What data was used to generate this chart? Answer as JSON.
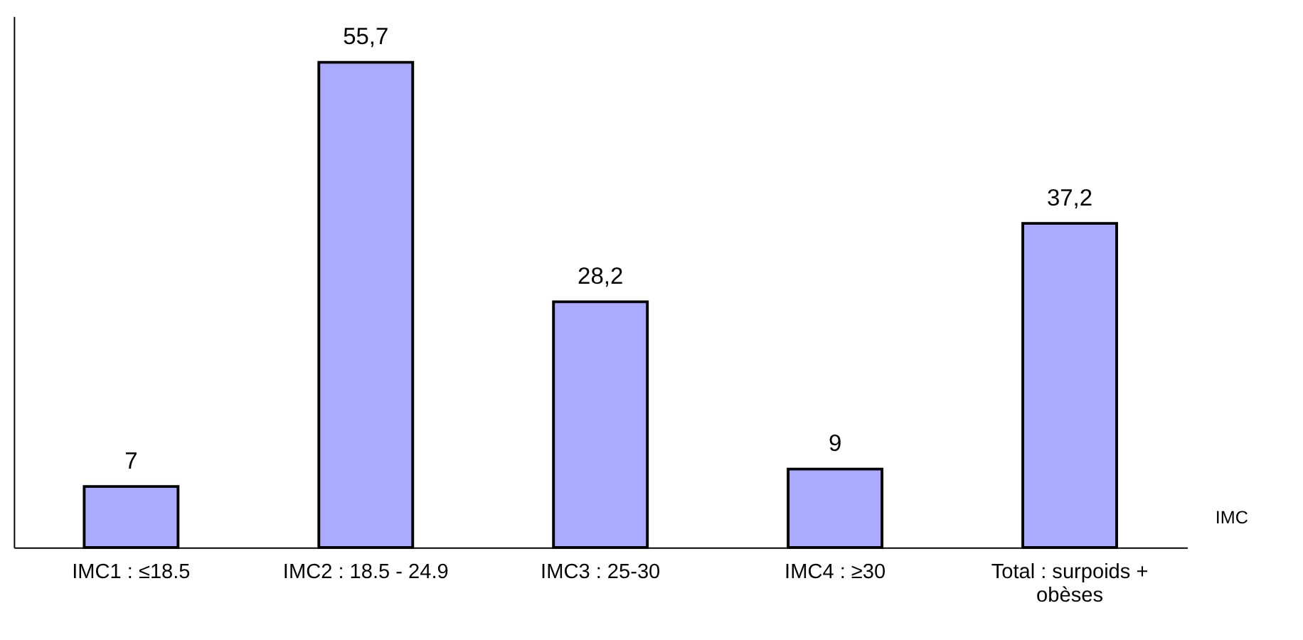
{
  "chart_data": {
    "type": "bar",
    "xlabel": "IMC",
    "categories": [
      "IMC1 :  ≤18.5",
      "IMC2 : 18.5 - 24.9",
      "IMC3 : 25-30",
      "IMC4 : ≥30",
      "Total : surpoids + obèses"
    ],
    "values": [
      7,
      55.7,
      28.2,
      9,
      37.2
    ],
    "value_labels": [
      "7",
      "55,7",
      "28,2",
      "9",
      "37,2"
    ],
    "color": "#aaaaff",
    "ylim": [
      0,
      61
    ],
    "tick_labels": "x"
  }
}
